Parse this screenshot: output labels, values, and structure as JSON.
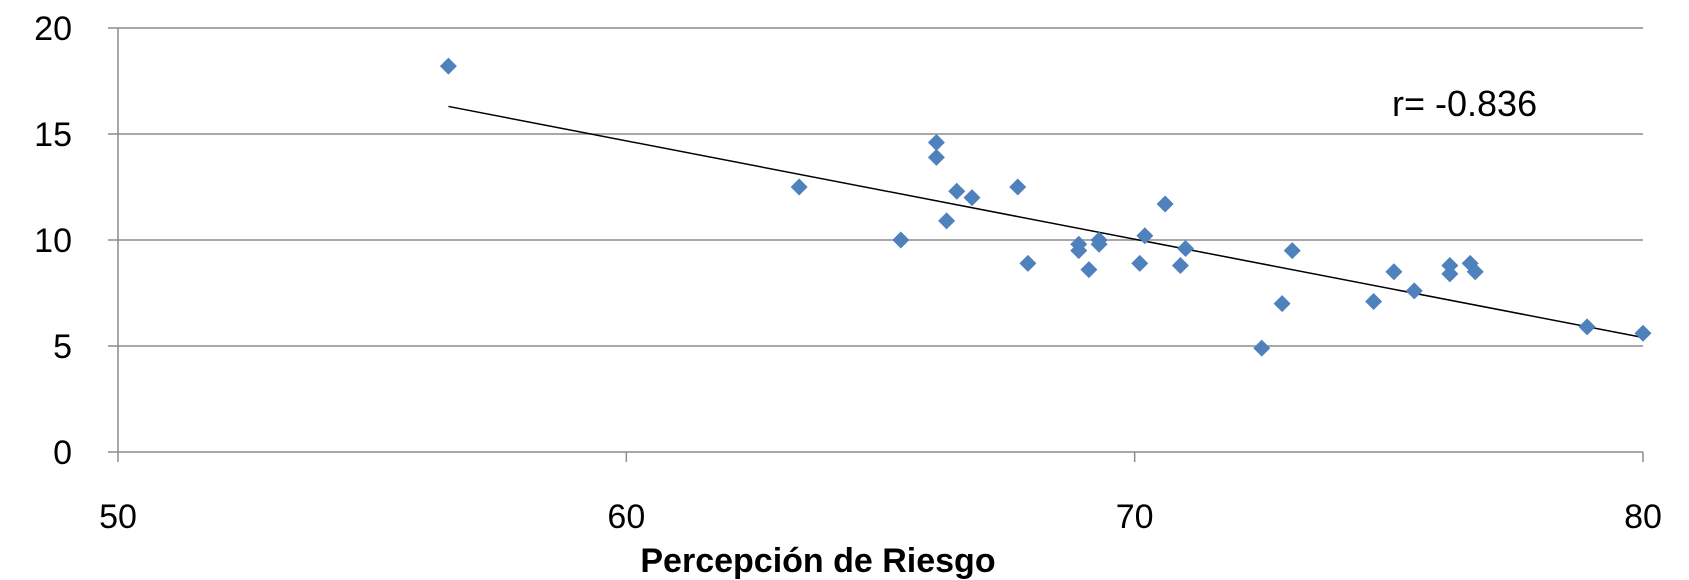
{
  "chart_data": {
    "type": "scatter",
    "title": "",
    "xlabel": "Percepción de Riesgo",
    "ylabel": "",
    "xlim": [
      50,
      80
    ],
    "ylim": [
      0,
      20
    ],
    "xticks": [
      50,
      60,
      70,
      80
    ],
    "yticks": [
      0,
      5,
      10,
      15,
      20
    ],
    "xtick_labels": [
      "50",
      "60",
      "70",
      "80"
    ],
    "ytick_labels": [
      "0",
      "5",
      "10",
      "15",
      "20"
    ],
    "grid": "horizontal",
    "marker_color": "#4F81BD",
    "trend_color": "#000000",
    "annotation": "r= -0.836",
    "trendline": {
      "x": [
        56.5,
        80.0
      ],
      "y": [
        16.3,
        5.4
      ]
    },
    "points": [
      {
        "x": 56.5,
        "y": 18.2
      },
      {
        "x": 63.4,
        "y": 12.5
      },
      {
        "x": 65.4,
        "y": 10.0
      },
      {
        "x": 66.1,
        "y": 14.6
      },
      {
        "x": 66.1,
        "y": 13.9
      },
      {
        "x": 66.3,
        "y": 10.9
      },
      {
        "x": 66.5,
        "y": 12.3
      },
      {
        "x": 66.8,
        "y": 12.0
      },
      {
        "x": 67.7,
        "y": 12.5
      },
      {
        "x": 67.9,
        "y": 8.9
      },
      {
        "x": 68.9,
        "y": 9.8
      },
      {
        "x": 68.9,
        "y": 9.5
      },
      {
        "x": 69.1,
        "y": 8.6
      },
      {
        "x": 69.3,
        "y": 10.0
      },
      {
        "x": 69.3,
        "y": 9.8
      },
      {
        "x": 70.1,
        "y": 8.9
      },
      {
        "x": 70.2,
        "y": 10.2
      },
      {
        "x": 70.6,
        "y": 11.7
      },
      {
        "x": 70.9,
        "y": 8.8
      },
      {
        "x": 71.0,
        "y": 9.6
      },
      {
        "x": 72.5,
        "y": 4.9
      },
      {
        "x": 72.9,
        "y": 7.0
      },
      {
        "x": 73.1,
        "y": 9.5
      },
      {
        "x": 74.7,
        "y": 7.1
      },
      {
        "x": 75.1,
        "y": 8.5
      },
      {
        "x": 75.5,
        "y": 7.6
      },
      {
        "x": 76.2,
        "y": 8.4
      },
      {
        "x": 76.2,
        "y": 8.8
      },
      {
        "x": 76.6,
        "y": 8.9
      },
      {
        "x": 76.7,
        "y": 8.5
      },
      {
        "x": 78.9,
        "y": 5.9
      },
      {
        "x": 80.0,
        "y": 5.6
      }
    ]
  }
}
